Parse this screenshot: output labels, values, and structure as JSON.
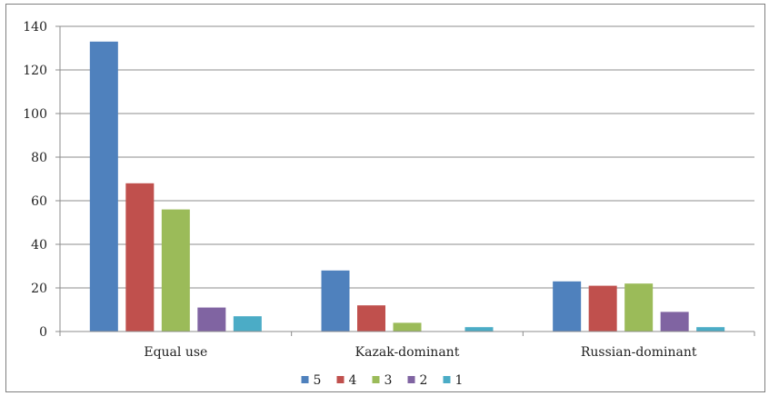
{
  "chart_data": {
    "type": "bar",
    "categories": [
      "Equal use",
      "Kazak-dominant",
      "Russian-dominant"
    ],
    "series": [
      {
        "name": "5",
        "values": [
          133,
          28,
          23
        ],
        "color": "#4f81bd"
      },
      {
        "name": "4",
        "values": [
          68,
          12,
          21
        ],
        "color": "#c0504d"
      },
      {
        "name": "3",
        "values": [
          56,
          4,
          22
        ],
        "color": "#9bbb59"
      },
      {
        "name": "2",
        "values": [
          11,
          0,
          9
        ],
        "color": "#8064a2"
      },
      {
        "name": "1",
        "values": [
          7,
          2,
          2
        ],
        "color": "#4bacc6"
      }
    ],
    "ylim": [
      0,
      140
    ],
    "yticks": [
      0,
      20,
      40,
      60,
      80,
      100,
      120,
      140
    ],
    "grid": true,
    "legend": "bottom-center"
  }
}
